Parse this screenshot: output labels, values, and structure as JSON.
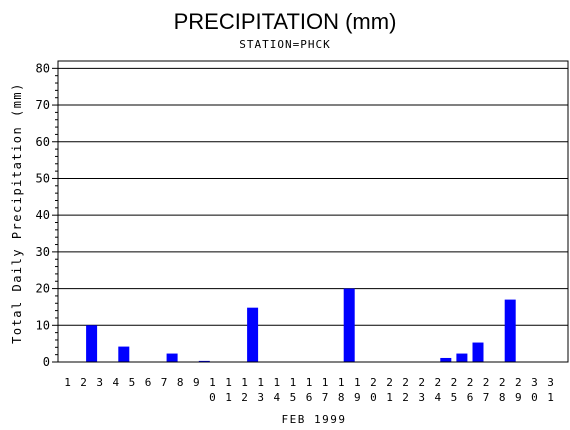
{
  "chart_data": {
    "type": "bar",
    "title": "PRECIPITATION (mm)",
    "subtitle": "STATION=PHCK",
    "xlabel": "FEB 1999",
    "ylabel": "Total Daily Precipitation (mm)",
    "ylim": [
      0,
      82
    ],
    "yticks": [
      0,
      10,
      20,
      30,
      40,
      50,
      60,
      70,
      80
    ],
    "grid": true,
    "bar_color": "#0000ff",
    "categories": [
      "1",
      "2",
      "3",
      "4",
      "5",
      "6",
      "7",
      "8",
      "9",
      "10",
      "11",
      "12",
      "13",
      "14",
      "15",
      "16",
      "17",
      "18",
      "19",
      "20",
      "21",
      "22",
      "23",
      "24",
      "25",
      "26",
      "27",
      "28",
      "29",
      "30",
      "31"
    ],
    "values": [
      0,
      10,
      0,
      4.2,
      0,
      0,
      2.3,
      0,
      0.3,
      0,
      0,
      14.8,
      0,
      0,
      0,
      0,
      0,
      20,
      0,
      0,
      0,
      0,
      0,
      1.1,
      2.3,
      5.3,
      0,
      17,
      0,
      0,
      0
    ]
  }
}
